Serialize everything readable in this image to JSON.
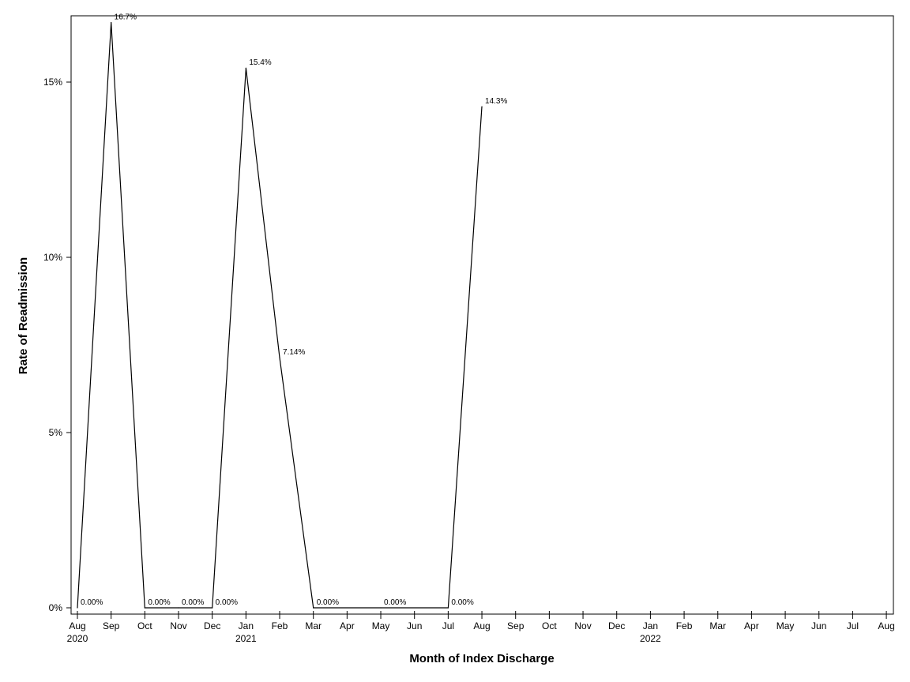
{
  "chart_data": {
    "type": "line",
    "title": "",
    "xlabel": "Month of Index Discharge",
    "ylabel": "Rate of Readmission",
    "x_ticks": [
      {
        "month": "Aug",
        "year": "2020"
      },
      {
        "month": "Sep",
        "year": ""
      },
      {
        "month": "Oct",
        "year": ""
      },
      {
        "month": "Nov",
        "year": ""
      },
      {
        "month": "Dec",
        "year": ""
      },
      {
        "month": "Jan",
        "year": "2021"
      },
      {
        "month": "Feb",
        "year": ""
      },
      {
        "month": "Mar",
        "year": ""
      },
      {
        "month": "Apr",
        "year": ""
      },
      {
        "month": "May",
        "year": ""
      },
      {
        "month": "Jun",
        "year": ""
      },
      {
        "month": "Jul",
        "year": ""
      },
      {
        "month": "Aug",
        "year": ""
      },
      {
        "month": "Sep",
        "year": ""
      },
      {
        "month": "Oct",
        "year": ""
      },
      {
        "month": "Nov",
        "year": ""
      },
      {
        "month": "Dec",
        "year": ""
      },
      {
        "month": "Jan",
        "year": "2022"
      },
      {
        "month": "Feb",
        "year": ""
      },
      {
        "month": "Mar",
        "year": ""
      },
      {
        "month": "Apr",
        "year": ""
      },
      {
        "month": "May",
        "year": ""
      },
      {
        "month": "Jun",
        "year": ""
      },
      {
        "month": "Jul",
        "year": ""
      },
      {
        "month": "Aug",
        "year": ""
      }
    ],
    "y_ticks": [
      {
        "value": 0,
        "label": "0%"
      },
      {
        "value": 5,
        "label": "5%"
      },
      {
        "value": 10,
        "label": "10%"
      },
      {
        "value": 15,
        "label": "15%"
      }
    ],
    "ylim": [
      0,
      16.7
    ],
    "xlim": [
      "2020-08",
      "2022-08"
    ],
    "grid": false,
    "points": [
      {
        "x": "2020-08",
        "y": 0.0,
        "label": "0.00%"
      },
      {
        "x": "2020-09",
        "y": 16.7,
        "label": "16.7%"
      },
      {
        "x": "2020-10",
        "y": 0.0,
        "label": "0.00%"
      },
      {
        "x": "2020-11",
        "y": 0.0,
        "label": "0.00%"
      },
      {
        "x": "2020-12",
        "y": 0.0,
        "label": "0.00%"
      },
      {
        "x": "2021-01",
        "y": 15.4,
        "label": "15.4%"
      },
      {
        "x": "2021-02",
        "y": 7.14,
        "label": "7.14%"
      },
      {
        "x": "2021-03",
        "y": 0.0,
        "label": "0.00%"
      },
      {
        "x": "2021-05",
        "y": 0.0,
        "label": "0.00%"
      },
      {
        "x": "2021-07",
        "y": 0.0,
        "label": "0.00%"
      },
      {
        "x": "2021-08",
        "y": 14.3,
        "label": "14.3%"
      }
    ],
    "series_color": "#000000"
  }
}
